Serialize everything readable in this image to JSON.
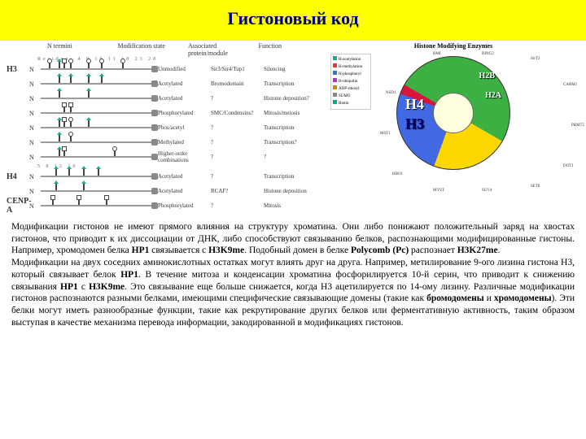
{
  "title": "Гистоновый код",
  "left_figure": {
    "headers": {
      "ntermini": "N termini",
      "modstate": "Modification state",
      "assoc": "Associated protein/module",
      "func": "Function"
    },
    "residue_line": "Residue: 4  9 10 11  18  23       28",
    "rows": [
      {
        "hist": "H3",
        "n": "N",
        "lollis": [
          10,
          22,
          28,
          36,
          58,
          74,
          100
        ],
        "types": [
          "open",
          "acetyl",
          "phos",
          "open",
          "open",
          "open",
          "open"
        ],
        "mod": "Unmodified",
        "assoc": "Sir3/Sir4/Tup1",
        "func": "Silencing"
      },
      {
        "hist": "",
        "n": "N",
        "lollis": [
          22,
          36,
          58,
          74
        ],
        "types": [
          "acetyl",
          "acetyl",
          "acetyl",
          "acetyl"
        ],
        "mod": "Acetylated",
        "assoc": "Bromodomain",
        "func": "Transcription"
      },
      {
        "hist": "",
        "n": "N",
        "lollis": [
          22,
          58
        ],
        "types": [
          "acetyl",
          "acetyl"
        ],
        "mod": "Acetylated",
        "assoc": "?",
        "func": "Histone deposition?"
      },
      {
        "hist": "",
        "n": "N",
        "lollis": [
          28,
          36
        ],
        "types": [
          "phos",
          "phos"
        ],
        "mod": "Phosphorylated",
        "assoc": "SMC/Condensins?",
        "func": "Mitosis/meiosis"
      },
      {
        "hist": "",
        "n": "N",
        "lollis": [
          22,
          28,
          36,
          58
        ],
        "types": [
          "acetyl",
          "phos",
          "open",
          "acetyl"
        ],
        "mod": "Phos/acetyl",
        "assoc": "?",
        "func": "Transcription"
      },
      {
        "hist": "",
        "n": "N",
        "lollis": [
          22,
          36
        ],
        "types": [
          "acetyl",
          "open"
        ],
        "mod": "Methylated",
        "assoc": "?",
        "func": "Transcription?"
      },
      {
        "hist": "",
        "n": "N",
        "lollis": [
          22,
          28,
          90
        ],
        "types": [
          "acetyl",
          "phos",
          "open"
        ],
        "mod": "Higher-order combinations",
        "assoc": "?",
        "func": "?"
      },
      {
        "hist": "H4",
        "n": "N",
        "lollis": [
          18,
          34,
          52,
          70
        ],
        "types": [
          "acetyl",
          "acetyl",
          "acetyl",
          "acetyl"
        ],
        "mod": "Acetylated",
        "assoc": "?",
        "func": "Transcription"
      },
      {
        "hist": "",
        "n": "N",
        "lollis": [
          18,
          52
        ],
        "types": [
          "acetyl",
          "acetyl"
        ],
        "mod": "Acetylated",
        "assoc": "RCAF?",
        "func": "Histone deposition"
      },
      {
        "hist": "CENP-A",
        "n": "N",
        "lollis": [
          14,
          46,
          80
        ],
        "types": [
          "phos",
          "phos",
          "phos"
        ],
        "mod": "Phosphorylated",
        "assoc": "?",
        "func": "Mitosis"
      }
    ],
    "h4_residues": "5  8    12    16"
  },
  "right_figure": {
    "title": "Histone Modifying Enzymes",
    "legend": [
      "H-acetylation",
      "H-methylation",
      "H-phosphoryl",
      "H-ubiquitin",
      "ADP-ribosyl",
      "SUMO",
      "Biotin"
    ],
    "labels": {
      "h4": "H4",
      "h3": "H3",
      "h2b": "H2B",
      "h2a": "H2A"
    },
    "anno": [
      "BMI",
      "RING2",
      "SirT2",
      "CARM1",
      "PRMT5",
      "DOT1",
      "SET8",
      "SUV4",
      "MYST",
      "HBO1",
      "MST1",
      "NSD1"
    ]
  },
  "paragraphs": {
    "p1_a": "Модификации гистонов не имеют прямого влияния на структуру хроматина. Они либо понижают положительный заряд на хвостах гистонов, что приводит к их диссоциации от ДНК, либо способствуют связыванию белков, распознающими модифицированные гистоны. Например, хромодомен белка ",
    "p1_b": "HP1",
    "p1_c": " связывается с ",
    "p1_d": "H3K9me",
    "p1_e": ". Подобный домен в белке ",
    "p1_f": "Polycomb (Pc)",
    "p1_g": " распознает ",
    "p1_h": "H3K27me",
    "p1_i": ".",
    "p2_a": "Модификации на двух соседних аминокислотных остатках могут влиять друг на друга. Например, метилирование 9-ого лизина гистона H3, который связывает белок ",
    "p2_b": "HP1",
    "p2_c": ". В течение митоза и конденсации хроматина фосфорилируется 10-й серин, что приводит к снижению связывания ",
    "p2_d": "HP1",
    "p2_e": " с ",
    "p2_f": "H3K9me",
    "p2_g": ". Это связывание еще больше снижается, когда H3 ацетилируется по 14-ому лизину. Различные модификации гистонов распознаются разными белками, имеющими специфические связывающие домены (такие как ",
    "p2_h": "бромодомены",
    "p2_i": " и ",
    "p2_j": "хромодомены",
    "p2_k": "). Эти белки могут иметь разнообразные функции, такие как рекрутирование других белков или ферментативную активность, таким образом выступая в качестве механизма перевода информации, закодированной в модификациях гистонов."
  }
}
